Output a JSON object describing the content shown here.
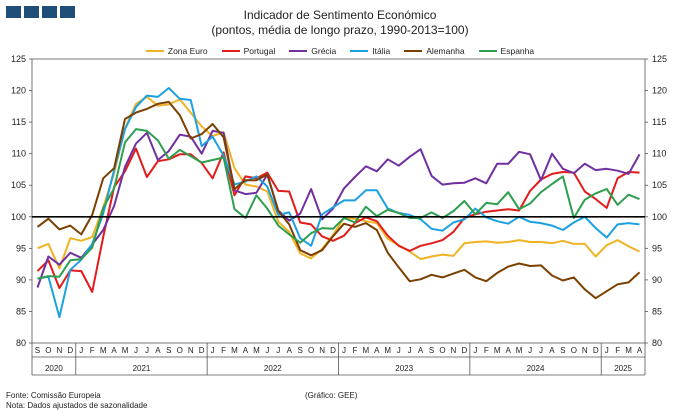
{
  "header": {
    "title": "Indicador de Sentimento Económico",
    "subtitle": "(pontos, média de longo prazo, 1990-2013=100)"
  },
  "footer": {
    "source": "Fonte: Comissão Europeia",
    "note": "Nota: Dados ajustados de sazonalidade",
    "chart_credit": "(Gráfico: GEE)"
  },
  "colors": {
    "logo": "#1f4e79",
    "reference_line": "#000000"
  },
  "chart_data": {
    "type": "line",
    "title": "Indicador de Sentimento Económico",
    "subtitle": "(pontos, média de longo prazo, 1990-2013=100)",
    "ylim": [
      80,
      125
    ],
    "yticks": [
      80,
      85,
      90,
      95,
      100,
      105,
      110,
      115,
      120,
      125
    ],
    "reference_line": 100,
    "legend_position": "top",
    "grid": false,
    "month_labels": [
      "S",
      "O",
      "N",
      "D",
      "J",
      "F",
      "M",
      "A",
      "M",
      "J",
      "J",
      "A",
      "S",
      "O",
      "N",
      "D",
      "J",
      "F",
      "M",
      "A",
      "M",
      "J",
      "J",
      "A",
      "S",
      "O",
      "N",
      "D",
      "J",
      "F",
      "M",
      "A",
      "M",
      "J",
      "J",
      "A",
      "S",
      "O",
      "N",
      "D",
      "J",
      "F",
      "M",
      "A",
      "M",
      "J",
      "J",
      "A",
      "S",
      "O",
      "N",
      "D",
      "J",
      "F",
      "M",
      "A"
    ],
    "years": [
      {
        "label": "2020",
        "start": 0,
        "count": 4
      },
      {
        "label": "2021",
        "start": 4,
        "count": 12
      },
      {
        "label": "2022",
        "start": 16,
        "count": 12
      },
      {
        "label": "2023",
        "start": 28,
        "count": 12
      },
      {
        "label": "2024",
        "start": 40,
        "count": 12
      },
      {
        "label": "2025",
        "start": 52,
        "count": 4
      }
    ],
    "series": [
      {
        "name": "Zona Euro",
        "color": "#f0b323",
        "values": [
          95.0,
          95.7,
          91.8,
          96.6,
          96.2,
          96.8,
          101.5,
          106.9,
          114.0,
          117.9,
          119.0,
          117.6,
          117.8,
          118.6,
          116.5,
          114.3,
          112.8,
          113.4,
          107.7,
          105.1,
          104.8,
          104.0,
          99.2,
          97.6,
          94.2,
          93.4,
          94.9,
          97.1,
          99.8,
          99.7,
          99.3,
          99.0,
          96.5,
          95.5,
          94.5,
          93.3,
          93.7,
          94.0,
          93.8,
          95.8,
          96.0,
          96.1,
          95.9,
          96.0,
          96.3,
          96.0,
          96.0,
          95.8,
          96.2,
          95.7,
          95.7,
          93.7,
          95.5,
          96.3,
          95.3,
          94.5
        ]
      },
      {
        "name": "Portugal",
        "color": "#e31b1b",
        "values": [
          91.4,
          93.1,
          88.7,
          91.5,
          91.4,
          88.1,
          96.8,
          104.7,
          107.2,
          110.8,
          106.3,
          108.8,
          109.1,
          109.9,
          109.9,
          108.5,
          106.1,
          110.2,
          103.4,
          106.4,
          106.1,
          107.0,
          104.1,
          104.0,
          99.1,
          98.8,
          96.9,
          96.2,
          97.0,
          99.0,
          99.9,
          99.3,
          97.0,
          95.4,
          94.6,
          95.4,
          95.8,
          96.3,
          97.6,
          99.8,
          100.4,
          100.8,
          101.0,
          101.2,
          101.0,
          104.1,
          105.9,
          106.8,
          107.1,
          107.0,
          104.0,
          102.8,
          101.4,
          106.1,
          107.1,
          107.0
        ]
      },
      {
        "name": "Grécia",
        "color": "#7030a0",
        "values": [
          88.8,
          93.7,
          92.4,
          94.3,
          93.5,
          95.6,
          97.9,
          101.7,
          107.9,
          111.6,
          113.3,
          109.0,
          110.4,
          113.0,
          112.7,
          110.0,
          113.6,
          113.3,
          104.2,
          103.6,
          103.8,
          106.7,
          101.0,
          99.4,
          100.5,
          104.4,
          99.6,
          101.3,
          104.5,
          106.3,
          108.0,
          107.2,
          109.1,
          108.1,
          109.5,
          110.7,
          106.5,
          105.1,
          105.3,
          105.4,
          106.1,
          105.3,
          108.4,
          108.4,
          110.3,
          109.9,
          105.8,
          110.0,
          107.6,
          106.9,
          108.4,
          107.4,
          107.6,
          107.3,
          106.8,
          109.9
        ]
      },
      {
        "name": "Itália",
        "color": "#1ba1e2",
        "values": [
          90.2,
          90.5,
          84.1,
          91.6,
          93.2,
          95.7,
          100.5,
          107.4,
          113.9,
          117.4,
          119.2,
          119.0,
          120.4,
          118.7,
          118.5,
          111.2,
          112.7,
          109.7,
          105.1,
          105.6,
          106.4,
          104.8,
          100.3,
          100.7,
          96.6,
          95.4,
          100.4,
          101.5,
          102.6,
          102.6,
          104.2,
          104.2,
          101.3,
          100.6,
          100.3,
          99.6,
          98.1,
          97.8,
          99.1,
          99.6,
          101.3,
          99.9,
          99.3,
          98.9,
          100.0,
          99.2,
          99.0,
          98.6,
          97.9,
          99.1,
          100.0,
          98.2,
          96.7,
          98.8,
          99.0,
          98.8
        ]
      },
      {
        "name": "Alemanha",
        "color": "#7b3f00",
        "values": [
          98.4,
          99.7,
          98.0,
          98.6,
          97.2,
          100.3,
          106.1,
          107.7,
          115.5,
          116.5,
          117.1,
          117.9,
          118.2,
          116.1,
          112.4,
          113.1,
          114.7,
          112.6,
          104.4,
          105.8,
          105.8,
          106.7,
          100.9,
          98.8,
          94.7,
          93.9,
          94.7,
          96.9,
          98.9,
          98.4,
          99.0,
          97.9,
          94.3,
          92.0,
          89.8,
          90.1,
          90.8,
          90.4,
          91.0,
          91.6,
          90.4,
          89.8,
          91.1,
          92.1,
          92.6,
          92.2,
          92.3,
          90.7,
          89.9,
          90.4,
          88.5,
          87.1,
          88.2,
          89.3,
          89.6,
          91.2
        ]
      },
      {
        "name": "Espanha",
        "color": "#2e9e4f",
        "values": [
          90.2,
          90.6,
          90.5,
          93.1,
          93.3,
          95.1,
          101.4,
          104.5,
          111.8,
          113.9,
          113.6,
          112.1,
          109.2,
          110.6,
          109.6,
          108.6,
          109.0,
          109.4,
          101.2,
          99.8,
          103.4,
          101.3,
          98.6,
          97.2,
          95.9,
          97.4,
          98.2,
          98.1,
          99.8,
          99.1,
          101.6,
          100.1,
          101.1,
          100.6,
          99.8,
          99.8,
          100.7,
          99.8,
          100.9,
          102.5,
          100.4,
          102.2,
          102.0,
          103.9,
          101.2,
          102.1,
          103.9,
          105.2,
          106.4,
          99.8,
          102.7,
          103.7,
          104.4,
          101.9,
          103.5,
          102.8
        ]
      }
    ]
  }
}
